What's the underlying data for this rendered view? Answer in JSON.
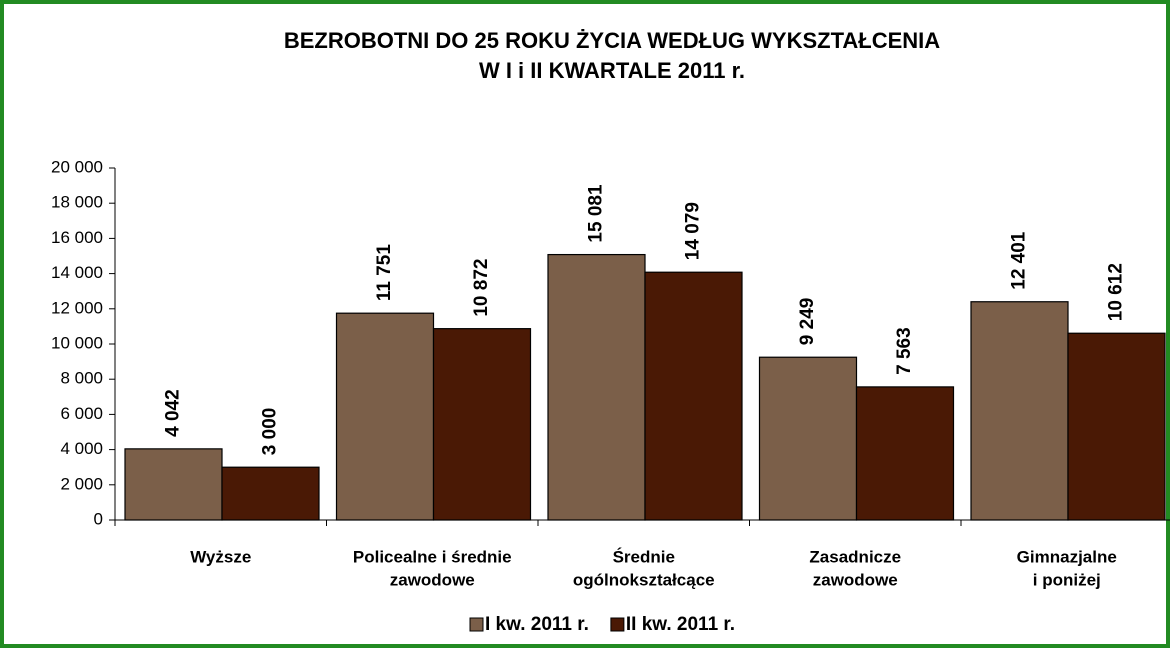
{
  "chart_data": {
    "type": "bar",
    "title": [
      "BEZROBOTNI DO 25 ROKU ŻYCIA WEDŁUG WYKSZTAŁCENIA",
      "W I i II KWARTALE 2011 r."
    ],
    "categories": [
      [
        "Wyższe"
      ],
      [
        "Policealne i średnie",
        "zawodowe"
      ],
      [
        "Średnie",
        "ogólnokształcące"
      ],
      [
        "Zasadnicze",
        "zawodowe"
      ],
      [
        "Gimnazjalne",
        "i poniżej"
      ]
    ],
    "series": [
      {
        "name": "I kw. 2011 r.",
        "color": "#7b5f49",
        "values": [
          4042,
          11751,
          15081,
          9249,
          12401
        ],
        "value_labels": [
          "4 042",
          "11 751",
          "15 081",
          "9 249",
          "12 401"
        ]
      },
      {
        "name": "II kw. 2011 r.",
        "color": "#4a1905",
        "values": [
          3000,
          10872,
          14079,
          7563,
          10612
        ],
        "value_labels": [
          "3 000",
          "10 872",
          "14 079",
          "7 563",
          "10 612"
        ]
      }
    ],
    "ylim": [
      0,
      20000
    ],
    "yticks": [
      0,
      {
        "value": 2000,
        "label": "2 000"
      },
      {
        "value": 4000,
        "label": "4 000"
      },
      {
        "value": 6000,
        "label": "6 000"
      },
      {
        "value": 8000,
        "label": "8 000"
      },
      {
        "value": 10000,
        "label": "10 000"
      },
      {
        "value": 12000,
        "label": "12 000"
      },
      {
        "value": 14000,
        "label": "14 000"
      },
      {
        "value": 16000,
        "label": "16 000"
      },
      {
        "value": 18000,
        "label": "18 000"
      },
      {
        "value": 20000,
        "label": "20 000"
      }
    ],
    "legend": "bottom"
  }
}
